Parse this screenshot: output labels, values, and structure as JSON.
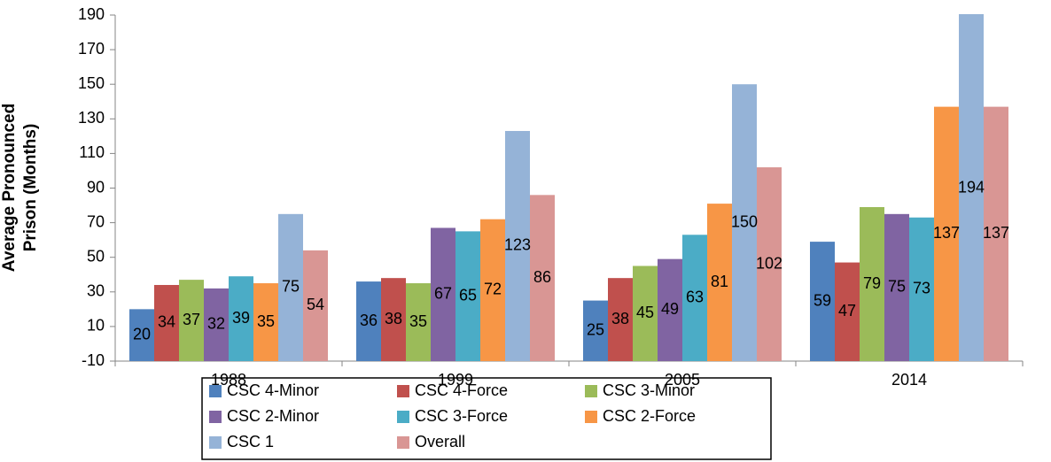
{
  "chart_data": {
    "type": "bar",
    "y_label": [
      "Average Pronounced",
      "Prison (Months)"
    ],
    "categories": [
      "1988",
      "1999",
      "2005",
      "2014"
    ],
    "series": [
      {
        "name": "CSC 4-Minor",
        "color": "#4F81BD",
        "values": [
          20,
          36,
          25,
          59
        ]
      },
      {
        "name": "CSC 4-Force",
        "color": "#C0504D",
        "values": [
          34,
          38,
          38,
          47
        ]
      },
      {
        "name": "CSC 3-Minor",
        "color": "#9BBB59",
        "values": [
          37,
          35,
          45,
          79
        ]
      },
      {
        "name": "CSC 2-Minor",
        "color": "#8064A2",
        "values": [
          32,
          67,
          49,
          75
        ]
      },
      {
        "name": "CSC 3-Force",
        "color": "#4BACC6",
        "values": [
          39,
          65,
          63,
          73
        ]
      },
      {
        "name": "CSC 2-Force",
        "color": "#F79646",
        "values": [
          35,
          72,
          81,
          137
        ]
      },
      {
        "name": "CSC 1",
        "color": "#95B3D7",
        "values": [
          75,
          123,
          150,
          194
        ]
      },
      {
        "name": "Overall",
        "color": "#D99694",
        "values": [
          54,
          86,
          102,
          137
        ]
      }
    ],
    "ylim": [
      -10,
      190
    ],
    "yticks": [
      -10,
      10,
      30,
      50,
      70,
      90,
      110,
      130,
      150,
      170,
      190
    ],
    "data_labels": true,
    "legend": "bottom"
  }
}
